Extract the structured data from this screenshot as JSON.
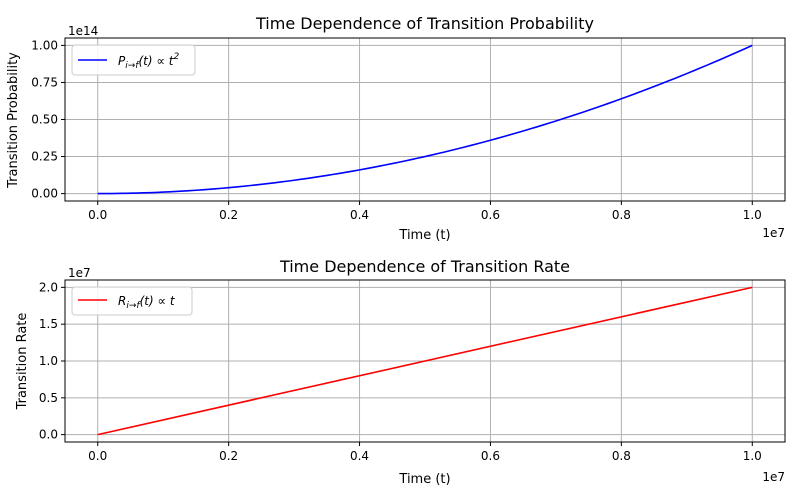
{
  "chart_data": [
    {
      "type": "line",
      "title": "Time Dependence of Transition Probability",
      "xlabel": "Time (t)",
      "ylabel": "Transition Probability",
      "x_offset_label": "1e7",
      "y_offset_label": "1e14",
      "xlim": [
        -0.05,
        1.05
      ],
      "ylim": [
        -0.05,
        1.05
      ],
      "x_ticks": [
        0.0,
        0.2,
        0.4,
        0.6,
        0.8,
        1.0
      ],
      "x_tick_labels": [
        "0.0",
        "0.2",
        "0.4",
        "0.6",
        "0.8",
        "1.0"
      ],
      "y_ticks": [
        0.0,
        0.25,
        0.5,
        0.75,
        1.0
      ],
      "y_tick_labels": [
        "0.00",
        "0.25",
        "0.50",
        "0.75",
        "1.00"
      ],
      "grid": true,
      "legend_position": "top-left",
      "series": [
        {
          "name": "P_{i→f}(t) ∝ t²",
          "legend_main": "P",
          "legend_sub": "i→f",
          "legend_rest": "(t) ∝ t",
          "legend_sup": "2",
          "color": "#0000ff",
          "x": [
            0.0,
            0.1,
            0.2,
            0.3,
            0.4,
            0.5,
            0.6,
            0.7,
            0.8,
            0.9,
            1.0
          ],
          "y": [
            0.0,
            0.01,
            0.04,
            0.09,
            0.16,
            0.25,
            0.36,
            0.49,
            0.64,
            0.81,
            1.0
          ]
        }
      ]
    },
    {
      "type": "line",
      "title": "Time Dependence of Transition Rate",
      "xlabel": "Time (t)",
      "ylabel": "Transition Rate",
      "x_offset_label": "1e7",
      "y_offset_label": "1e7",
      "xlim": [
        -0.05,
        1.05
      ],
      "ylim": [
        -0.1,
        2.1
      ],
      "x_ticks": [
        0.0,
        0.2,
        0.4,
        0.6,
        0.8,
        1.0
      ],
      "x_tick_labels": [
        "0.0",
        "0.2",
        "0.4",
        "0.6",
        "0.8",
        "1.0"
      ],
      "y_ticks": [
        0.0,
        0.5,
        1.0,
        1.5,
        2.0
      ],
      "y_tick_labels": [
        "0.0",
        "0.5",
        "1.0",
        "1.5",
        "2.0"
      ],
      "grid": true,
      "legend_position": "top-left",
      "series": [
        {
          "name": "R_{i→f}(t) ∝ t",
          "legend_main": "R",
          "legend_sub": "i→f",
          "legend_rest": "(t) ∝ t",
          "legend_sup": "",
          "color": "#ff0000",
          "x": [
            0.0,
            1.0
          ],
          "y": [
            0.0,
            2.0
          ]
        }
      ]
    }
  ]
}
